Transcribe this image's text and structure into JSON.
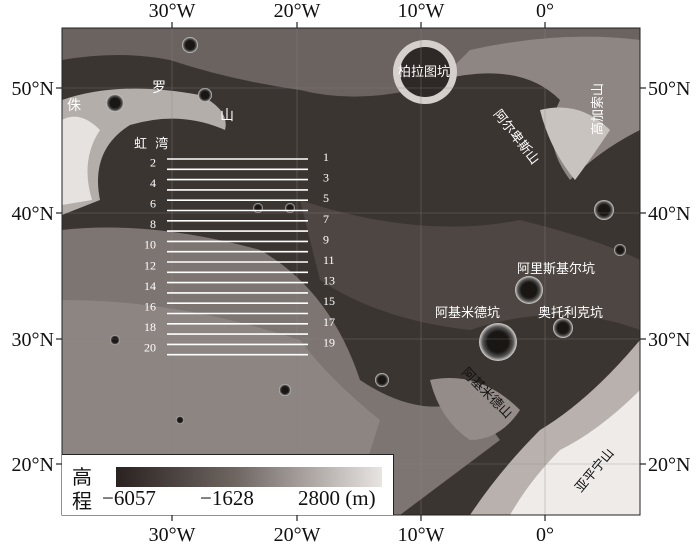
{
  "map": {
    "lon_ticks": [
      "30°W",
      "20°W",
      "10°W",
      "0°"
    ],
    "lat_ticks": [
      "50°N",
      "40°N",
      "30°N",
      "20°N"
    ],
    "features": {
      "jura_1": "侏",
      "jura_2": "罗",
      "jura_3": "山",
      "sinus_iridum": "虹  湾",
      "plato": "柏拉图坑",
      "alps": "阿尔卑斯山",
      "caucasus": "高加索山",
      "aristillus": "阿里斯基尔坑",
      "archimedes": "阿基米德坑",
      "autolycus": "奥托利克坑",
      "archimedes_mtn": "阿基米德山",
      "apennines": "亚平宁山"
    },
    "profile_labels": [
      "1",
      "2",
      "3",
      "4",
      "5",
      "6",
      "7",
      "8",
      "9",
      "10",
      "11",
      "12",
      "13",
      "14",
      "15",
      "16",
      "17",
      "18",
      "19",
      "20"
    ]
  },
  "legend": {
    "title_1": "高",
    "title_2": "程",
    "min": "−6057",
    "mid": "−1628",
    "max": "2800 (m)",
    "color_low": "#2a2220",
    "color_high": "#e8e4e2"
  }
}
